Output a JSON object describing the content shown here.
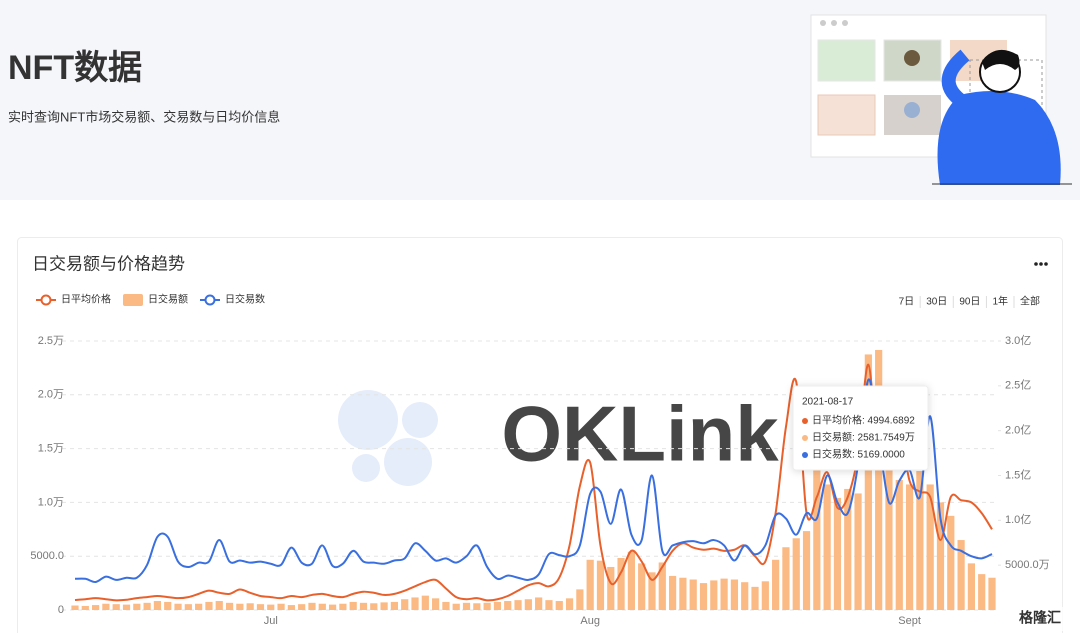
{
  "header": {
    "title": "NFT数据",
    "subtitle": "实时查询NFT市场交易额、交易数与日均价信息"
  },
  "watermarks": [
    "OKLink",
    "格隆汇"
  ],
  "chart_data": {
    "type": "combo",
    "title": "日交易额与价格趋势",
    "ranges": [
      "7日",
      "30日",
      "90日",
      "1年",
      "全部"
    ],
    "active_range": "90日",
    "categories": [
      null,
      null,
      null,
      null,
      null,
      null,
      null,
      null,
      null,
      null,
      null,
      null,
      null,
      null,
      null,
      null,
      null,
      null,
      null,
      "Jul",
      null,
      null,
      null,
      null,
      null,
      null,
      null,
      null,
      null,
      null,
      null,
      null,
      null,
      null,
      null,
      null,
      null,
      null,
      null,
      null,
      null,
      null,
      null,
      null,
      null,
      null,
      null,
      null,
      null,
      null,
      "Aug",
      null,
      null,
      null,
      null,
      null,
      null,
      null,
      null,
      null,
      null,
      null,
      null,
      null,
      null,
      null,
      null,
      null,
      null,
      null,
      null,
      null,
      null,
      null,
      null,
      null,
      null,
      null,
      null,
      null,
      null,
      "Sept",
      null,
      null,
      null,
      null,
      null,
      null,
      null,
      null
    ],
    "series": [
      {
        "name": "日平均价格",
        "type": "line",
        "color": "#e8612c",
        "values": [
          930,
          1000,
          1100,
          1000,
          900,
          950,
          1100,
          1200,
          1300,
          1200,
          1100,
          1200,
          1500,
          1800,
          1600,
          1500,
          1900,
          1600,
          1300,
          1200,
          1100,
          1300,
          1200,
          1400,
          1500,
          1300,
          1200,
          1500,
          1700,
          1600,
          1400,
          1500,
          1800,
          2200,
          2600,
          2800,
          2000,
          1200,
          1000,
          1100,
          900,
          1000,
          1300,
          1800,
          2300,
          2500,
          2200,
          3000,
          6000,
          11500,
          13700,
          6000,
          2500,
          3500,
          5500,
          4500,
          2800,
          4000,
          5500,
          6200,
          5800,
          5600,
          5700,
          5500,
          5600,
          6000,
          4994.6892,
          4500,
          9000,
          17000,
          21200,
          9000,
          10500,
          12800,
          9500,
          10500,
          14500,
          22800,
          13500,
          15500,
          17000,
          12000,
          11000,
          10500,
          6500,
          10500,
          10200,
          10000,
          9000,
          7500
        ]
      },
      {
        "name": "日交易额",
        "type": "bar",
        "axis": "y2",
        "color": "#fbb984",
        "values": [
          500,
          450,
          550,
          700,
          650,
          600,
          700,
          800,
          1000,
          900,
          700,
          650,
          700,
          900,
          1000,
          800,
          700,
          750,
          650,
          600,
          700,
          550,
          650,
          800,
          700,
          600,
          700,
          900,
          800,
          750,
          850,
          900,
          1200,
          1400,
          1600,
          1300,
          900,
          700,
          800,
          750,
          800,
          900,
          1000,
          1100,
          1200,
          1400,
          1100,
          1000,
          1300,
          2300,
          5600,
          5500,
          4800,
          5800,
          6500,
          5200,
          4200,
          5300,
          3800,
          3600,
          3400,
          3000,
          3300,
          3500,
          3400,
          3100,
          2581.7549,
          3200,
          5600,
          7000,
          8000,
          8800,
          16000,
          14000,
          12500,
          13500,
          13000,
          28500,
          29000,
          16000,
          14500,
          14000,
          15500,
          14000,
          12000,
          10500,
          7800,
          5200,
          4000,
          3600
        ]
      },
      {
        "name": "日交易数",
        "type": "line",
        "color": "#3a6fe0",
        "values": [
          2900,
          2900,
          2600,
          3100,
          2800,
          3000,
          3000,
          4200,
          6800,
          6800,
          4500,
          4000,
          4400,
          4500,
          6500,
          4500,
          4600,
          4400,
          4500,
          4300,
          4200,
          5800,
          4400,
          4300,
          6000,
          4100,
          4300,
          5500,
          4500,
          4400,
          4300,
          4600,
          4800,
          6200,
          5500,
          4600,
          4800,
          4400,
          5000,
          6000,
          4000,
          2900,
          3200,
          3000,
          2800,
          3300,
          5200,
          5100,
          5000,
          6000,
          10800,
          11000,
          8000,
          11200,
          7000,
          6500,
          12500,
          5500,
          6000,
          6300,
          6400,
          6200,
          6500,
          6000,
          4600,
          6000,
          5169,
          6000,
          8800,
          8500,
          7000,
          9000,
          8500,
          12500,
          10000,
          9000,
          13500,
          21400,
          16000,
          10000,
          12000,
          13000,
          10500,
          18000,
          8500,
          6000,
          5500,
          5000,
          4800,
          5200
        ]
      }
    ],
    "ylim": [
      0,
      25000
    ],
    "yticks": [
      0,
      {
        "value": 5000,
        "label": "5000.0"
      },
      {
        "value": 10000,
        "label": "1.0万"
      },
      {
        "value": 15000,
        "label": "1.5万"
      },
      {
        "value": 20000,
        "label": "2.0万"
      },
      {
        "value": 25000,
        "label": "2.5万"
      }
    ],
    "y2lim": [
      0,
      30000
    ],
    "y2ticks": [
      {
        "value": 5000,
        "label": "5000.0万"
      },
      {
        "value": 10000,
        "label": "1.0亿"
      },
      {
        "value": 15000,
        "label": "1.5亿"
      },
      {
        "value": 20000,
        "label": "2.0亿"
      },
      {
        "value": 25000,
        "label": "2.5亿"
      },
      {
        "value": 30000,
        "label": "3.0亿"
      }
    ],
    "grid": true,
    "tooltip": {
      "title": "2021-08-17",
      "lines": [
        "日平均价格: 4994.6892",
        "日交易额: 2581.7549万",
        "日交易数: 5169.0000"
      ]
    }
  }
}
